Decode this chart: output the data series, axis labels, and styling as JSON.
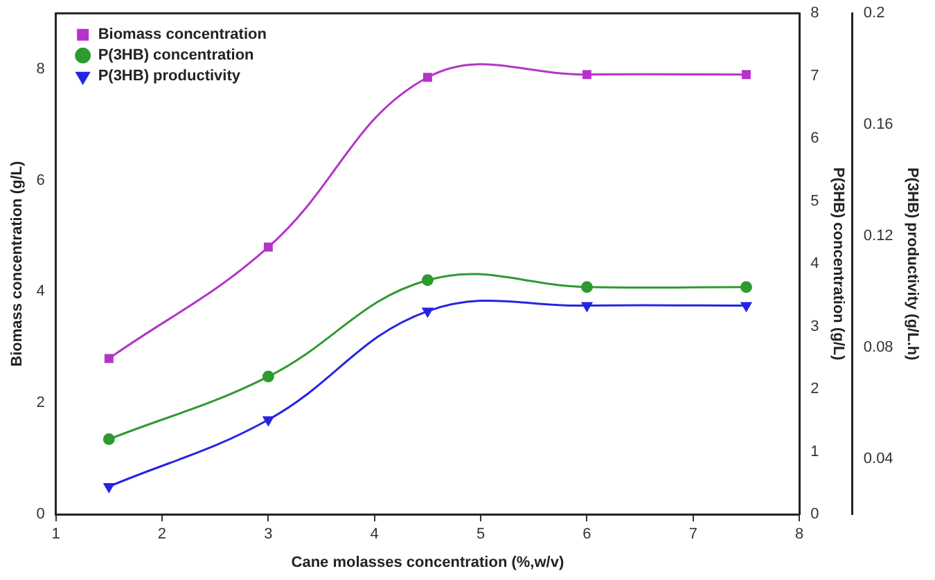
{
  "chart_data": {
    "type": "line",
    "xlabel": "Cane molasses concentration (%,w/v)",
    "ylabel": "Biomass concentration (g/L)",
    "y2label": "P(3HB) concentration (g/L)",
    "y3label": "P(3HB) productivity (g/L.h)",
    "x": [
      1.5,
      3,
      4.5,
      6,
      7.5
    ],
    "series": [
      {
        "name": "Biomass concentration",
        "color": "#b533c9",
        "marker": "square",
        "values": [
          2.8,
          4.8,
          7.85,
          7.9,
          7.9
        ]
      },
      {
        "name": "P(3HB) concentration",
        "color": "#2f9a2f",
        "marker": "circle",
        "axis": "y2",
        "values": [
          1.2,
          2.2,
          3.74,
          3.63,
          3.63
        ]
      },
      {
        "name": "P(3HB) productivity",
        "color": "#2424e6",
        "marker": "triangle",
        "axis": "y3",
        "values": [
          0.03,
          0.054,
          0.093,
          0.095,
          0.095
        ]
      }
    ],
    "xlim": [
      1,
      8
    ],
    "xticks": [
      1,
      2,
      3,
      4,
      5,
      6,
      7,
      8
    ],
    "ylim": [
      0,
      9
    ],
    "yticks": [
      0,
      2,
      4,
      6,
      8
    ],
    "y2lim": [
      0,
      8
    ],
    "y2ticks": [
      0,
      1,
      2,
      3,
      4,
      5,
      6,
      7,
      8
    ],
    "y3lim": [
      0.02,
      0.2
    ],
    "y3ticks": [
      0.04,
      0.08,
      0.12,
      0.16,
      0.2
    ],
    "grid": false,
    "legend": "top left"
  }
}
